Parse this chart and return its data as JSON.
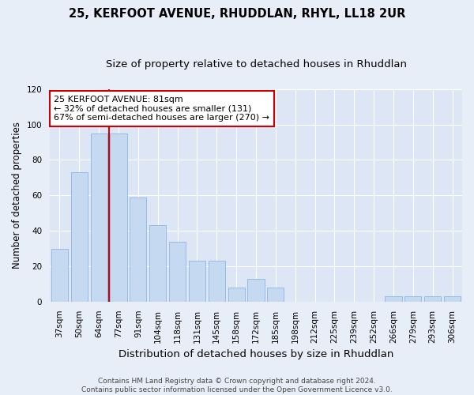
{
  "title": "25, KERFOOT AVENUE, RHUDDLAN, RHYL, LL18 2UR",
  "subtitle": "Size of property relative to detached houses in Rhuddlan",
  "xlabel": "Distribution of detached houses by size in Rhuddlan",
  "ylabel": "Number of detached properties",
  "categories": [
    "37sqm",
    "50sqm",
    "64sqm",
    "77sqm",
    "91sqm",
    "104sqm",
    "118sqm",
    "131sqm",
    "145sqm",
    "158sqm",
    "172sqm",
    "185sqm",
    "198sqm",
    "212sqm",
    "225sqm",
    "239sqm",
    "252sqm",
    "266sqm",
    "279sqm",
    "293sqm",
    "306sqm"
  ],
  "values": [
    30,
    73,
    95,
    95,
    59,
    43,
    34,
    23,
    23,
    8,
    13,
    8,
    0,
    0,
    0,
    0,
    0,
    3,
    3,
    3,
    3
  ],
  "bar_color": "#c5d9f1",
  "bar_edge_color": "#8db4e2",
  "fig_bg_color": "#e8eef8",
  "ax_bg_color": "#dce6f5",
  "grid_color": "#ffffff",
  "vline_x": 2.5,
  "vline_color": "#cc0000",
  "annotation_line1": "25 KERFOOT AVENUE: 81sqm",
  "annotation_line2": "← 32% of detached houses are smaller (131)",
  "annotation_line3": "67% of semi-detached houses are larger (270) →",
  "annotation_box_color": "#cc0000",
  "ylim": [
    0,
    120
  ],
  "yticks": [
    0,
    20,
    40,
    60,
    80,
    100,
    120
  ],
  "footer": "Contains HM Land Registry data © Crown copyright and database right 2024.\nContains public sector information licensed under the Open Government Licence v3.0.",
  "title_fontsize": 10.5,
  "subtitle_fontsize": 9.5,
  "xlabel_fontsize": 9.5,
  "ylabel_fontsize": 8.5,
  "tick_fontsize": 7.5,
  "annot_fontsize": 8,
  "footer_fontsize": 6.5
}
